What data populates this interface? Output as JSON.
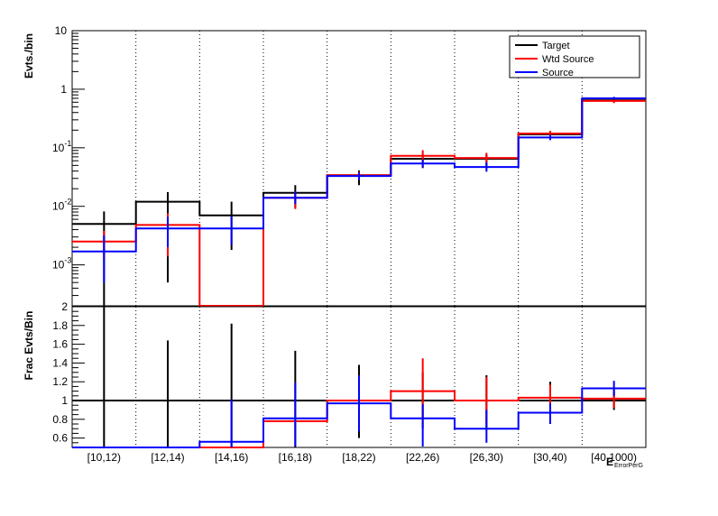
{
  "colors": {
    "target": "#000000",
    "wtd_source": "#ff0000",
    "source": "#0000ff",
    "grid": "#000000"
  },
  "chart_data": [
    {
      "type": "step",
      "panel": "top",
      "ylabel": "Evts./bin",
      "yscale": "log",
      "ylim": [
        0.0002,
        10
      ],
      "ytick_labels": [
        {
          "value": 10,
          "label": "10"
        },
        {
          "value": 1,
          "label": "1"
        },
        {
          "value": 0.1,
          "label": "10^-1"
        },
        {
          "value": 0.01,
          "label": "10^-2"
        },
        {
          "value": 0.001,
          "label": "10^-3"
        }
      ],
      "categories": [
        "[10,12)",
        "[12,14)",
        "[14,16)",
        "[16,18)",
        "[18,22)",
        "[22,26)",
        "[26,30)",
        "[30,40)",
        "[40,1000)"
      ],
      "legend": {
        "position": "top-right",
        "entries": [
          "Target",
          "Wtd Source",
          "Source"
        ]
      },
      "series": [
        {
          "name": "Target",
          "color_key": "target",
          "values": [
            0.005,
            0.012,
            0.007,
            0.017,
            0.034,
            0.065,
            0.065,
            0.17,
            0.68
          ],
          "err_low": [
            0.005,
            0.0115,
            0.0052,
            0.0075,
            0.011,
            0.02,
            0.02,
            0.03,
            0.08
          ],
          "err_high": [
            0.0032,
            0.0055,
            0.005,
            0.006,
            0.007,
            0.012,
            0.012,
            0.02,
            0.05
          ]
        },
        {
          "name": "Wtd Source",
          "color_key": "wtd_source",
          "values": [
            0.0025,
            0.0048,
            0.0,
            0.014,
            0.034,
            0.073,
            0.067,
            0.175,
            0.63
          ],
          "err_low": [
            0.0012,
            0.0034,
            0.0,
            0.005,
            0.006,
            0.015,
            0.015,
            0.02,
            0.05
          ],
          "err_high": [
            0.0013,
            0.0028,
            0.0,
            0.004,
            0.005,
            0.018,
            0.015,
            0.02,
            0.05
          ]
        },
        {
          "name": "Source",
          "color_key": "source",
          "values": [
            0.0017,
            0.0042,
            0.0042,
            0.014,
            0.033,
            0.054,
            0.047,
            0.15,
            0.7
          ],
          "err_low": [
            0.0012,
            0.0022,
            0.002,
            0.003,
            0.005,
            0.008,
            0.008,
            0.015,
            0.04
          ],
          "err_high": [
            0.0015,
            0.0025,
            0.0025,
            0.004,
            0.005,
            0.009,
            0.009,
            0.015,
            0.04
          ]
        }
      ]
    },
    {
      "type": "step",
      "panel": "bottom",
      "ylabel": "Frac Evts/Bin",
      "yscale": "linear",
      "ylim": [
        0.5,
        2
      ],
      "ytick_labels": [
        "0.6",
        "0.8",
        "1",
        "1.2",
        "1.4",
        "1.6",
        "1.8",
        "2"
      ],
      "xlabel": "E",
      "xlabel_sub": "ErrorPerG",
      "categories": [
        "[10,12)",
        "[12,14)",
        "[14,16)",
        "[16,18)",
        "[18,22)",
        "[22,26)",
        "[26,30)",
        "[30,40)",
        "[40,1000)"
      ],
      "series": [
        {
          "name": "Target",
          "color_key": "target",
          "values": [
            1,
            1,
            1,
            1,
            1,
            1,
            1,
            1,
            1
          ],
          "err_low": [
            0.5,
            0.5,
            0.5,
            0.5,
            0.4,
            0.3,
            0.3,
            0.2,
            0.1
          ],
          "err_high": [
            1.0,
            0.64,
            0.82,
            0.53,
            0.38,
            0.3,
            0.27,
            0.2,
            0.1
          ]
        },
        {
          "name": "Wtd Source",
          "color_key": "wtd_source",
          "values": [
            0.5,
            0.5,
            0.5,
            0.78,
            1.0,
            1.1,
            1.0,
            1.03,
            1.02
          ],
          "err_low": [
            0,
            0,
            0,
            0,
            0.2,
            0.3,
            0.25,
            0.12,
            0.1
          ],
          "err_high": [
            0,
            0,
            0,
            0,
            0.2,
            0.35,
            0.25,
            0.14,
            0.12
          ]
        },
        {
          "name": "Source",
          "color_key": "source",
          "values": [
            0.5,
            0.5,
            0.56,
            0.81,
            0.97,
            0.81,
            0.7,
            0.87,
            1.13
          ],
          "err_low": [
            0,
            0,
            0.1,
            0.3,
            0.3,
            0.3,
            0.15,
            0.12,
            0.08
          ],
          "err_high": [
            0,
            0,
            0.45,
            0.38,
            0.3,
            0.15,
            0.2,
            0.1,
            0.08
          ]
        }
      ]
    }
  ]
}
